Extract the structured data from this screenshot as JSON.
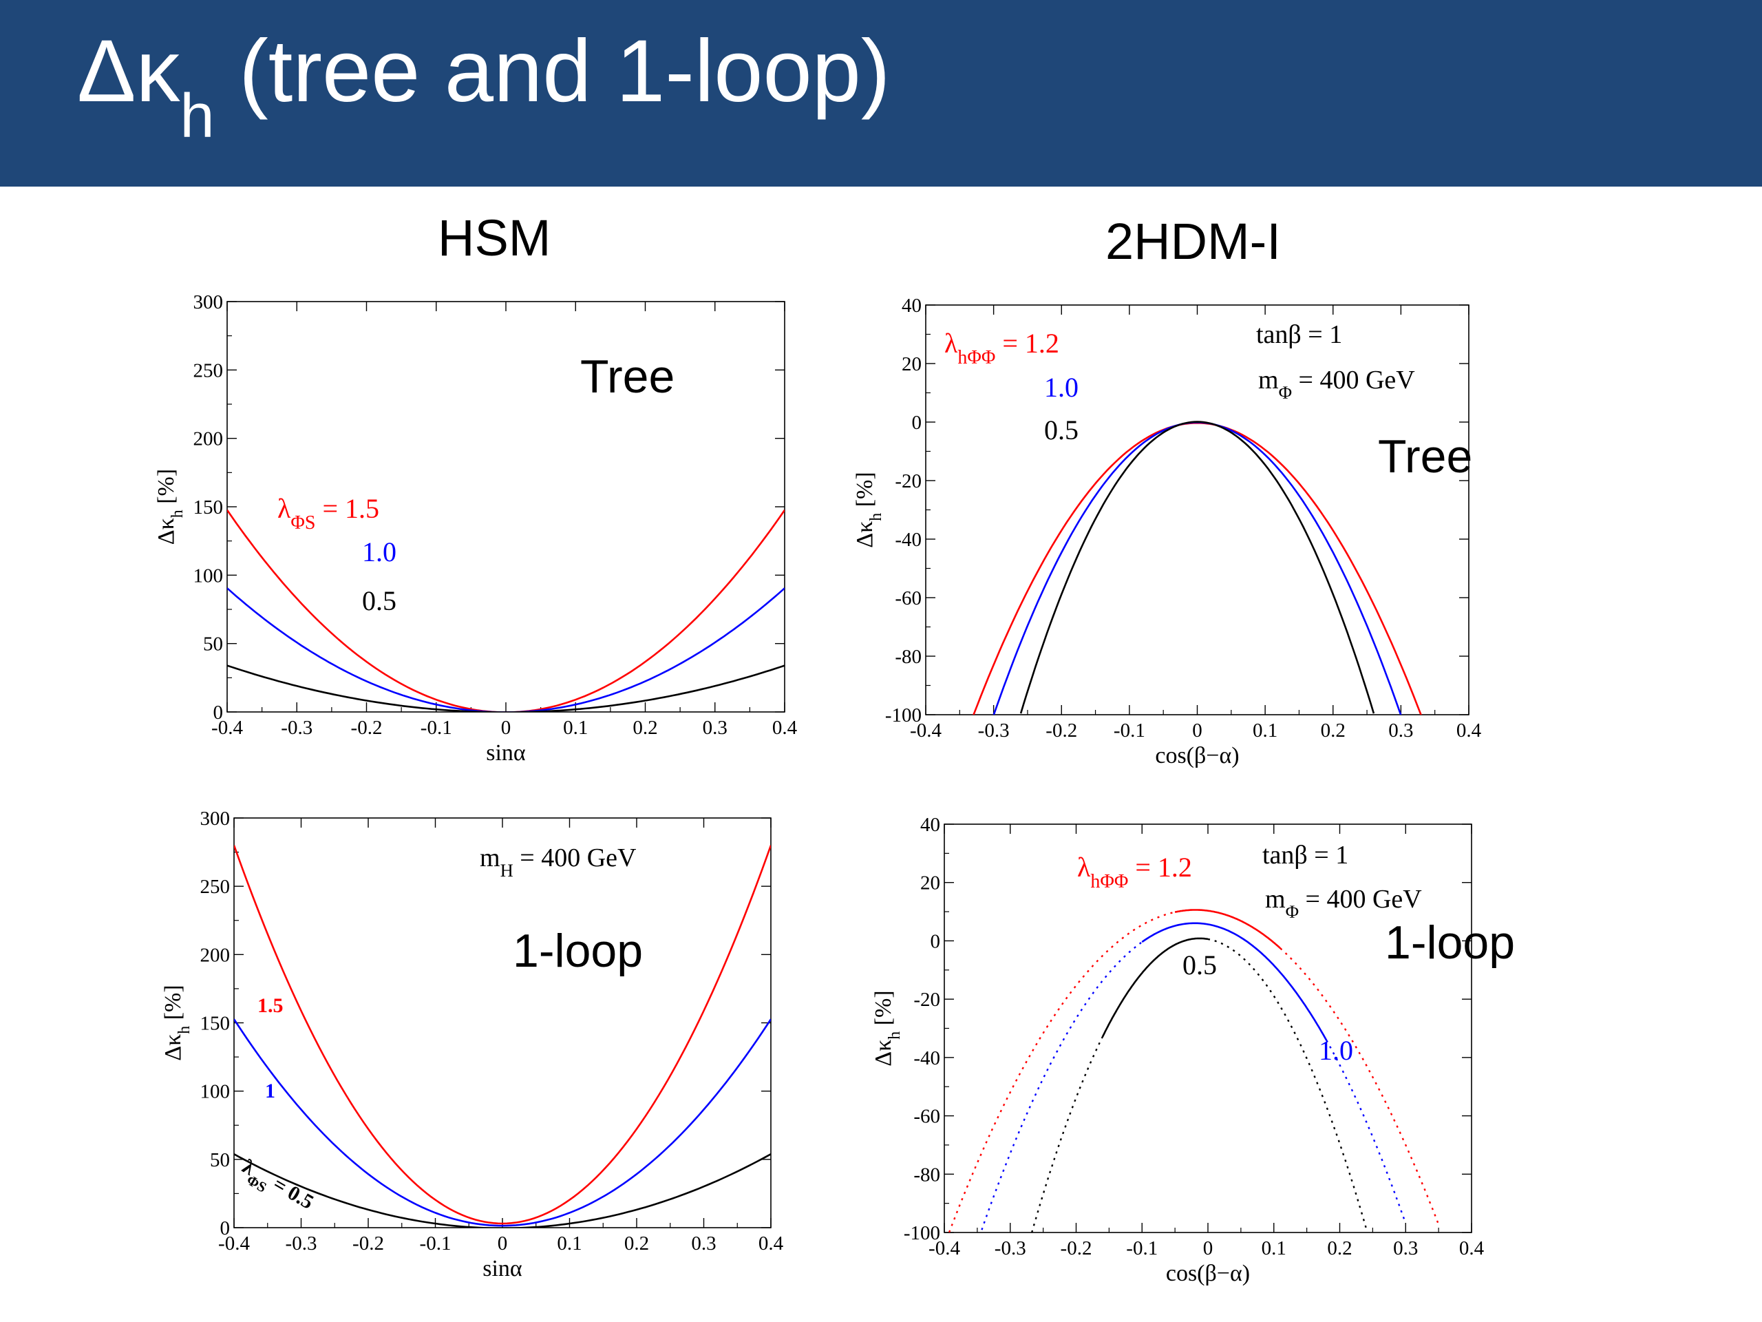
{
  "slide": {
    "title_main": "Δκ",
    "title_sub": "h",
    "title_rest": " (tree and 1-loop)",
    "background_color": "#1f4778"
  },
  "columns": {
    "left": "HSM",
    "right": "2HDM-I"
  },
  "colors": {
    "red": "#ff0000",
    "blue": "#0000ff",
    "black": "#000000"
  },
  "chart_data": [
    {
      "id": "hsm-tree",
      "type": "line",
      "xlim": [
        -0.4,
        0.4
      ],
      "ylim": [
        0,
        300
      ],
      "xticks": [
        "-0.4",
        "-0.3",
        "-0.2",
        "-0.1",
        "0",
        "0.1",
        "0.2",
        "0.3",
        "0.4"
      ],
      "yticks": [
        "0",
        "50",
        "100",
        "150",
        "200",
        "250",
        "300"
      ],
      "xlabel": "sinα",
      "ylabel": "Δκ",
      "ylabel_sub": "h",
      "ylabel_unit": " [%]",
      "tag": "Tree",
      "annotations": [],
      "series": [
        {
          "label_prefix": "λ",
          "label_sub": "ΦS",
          "label": " = 1.5",
          "color": "#ff0000",
          "style": "solid",
          "x": [
            -0.4,
            -0.3,
            -0.2,
            -0.1,
            0,
            0.1,
            0.2,
            0.3,
            0.4
          ],
          "y": [
            148,
            82,
            37,
            9,
            0,
            9,
            37,
            82,
            148
          ]
        },
        {
          "label": "1.0",
          "color": "#0000ff",
          "style": "solid",
          "x": [
            -0.4,
            -0.3,
            -0.2,
            -0.1,
            0,
            0.1,
            0.2,
            0.3,
            0.4
          ],
          "y": [
            91,
            50,
            22,
            6,
            0,
            6,
            22,
            50,
            91
          ]
        },
        {
          "label": "0.5",
          "color": "#000000",
          "style": "solid",
          "x": [
            -0.4,
            -0.3,
            -0.2,
            -0.1,
            0,
            0.1,
            0.2,
            0.3,
            0.4
          ],
          "y": [
            34,
            19,
            8,
            2,
            0,
            2,
            8,
            19,
            34
          ]
        }
      ]
    },
    {
      "id": "thdm-tree",
      "type": "line",
      "xlim": [
        -0.4,
        0.4
      ],
      "ylim": [
        -100,
        40
      ],
      "xticks": [
        "-0.4",
        "-0.3",
        "-0.2",
        "-0.1",
        "0",
        "0.1",
        "0.2",
        "0.3",
        "0.4"
      ],
      "yticks": [
        "-100",
        "-80",
        "-60",
        "-40",
        "-20",
        "0",
        "20",
        "40"
      ],
      "xlabel": "cos(β−α)",
      "ylabel": "Δκ",
      "ylabel_sub": "h",
      "ylabel_unit": " [%]",
      "tag": "Tree",
      "annotations": [
        {
          "text": "tanβ = 1"
        },
        {
          "text": "m",
          "sub": "Φ",
          "rest": " = 400 GeV"
        }
      ],
      "series": [
        {
          "label_prefix": "λ",
          "label_sub": "hΦΦ",
          "label": " = 1.2",
          "color": "#ff0000",
          "style": "solid",
          "x": [
            -0.33,
            -0.2,
            -0.1,
            0,
            0.1,
            0.2,
            0.33
          ],
          "y": [
            -100,
            -38,
            -9,
            0,
            -9,
            -38,
            -100
          ]
        },
        {
          "label": "1.0",
          "color": "#0000ff",
          "style": "solid",
          "x": [
            -0.3,
            -0.2,
            -0.1,
            0,
            0.1,
            0.2,
            0.3
          ],
          "y": [
            -100,
            -45,
            -11,
            0,
            -11,
            -45,
            -100
          ]
        },
        {
          "label": "0.5",
          "color": "#000000",
          "style": "solid",
          "x": [
            -0.26,
            -0.2,
            -0.1,
            0,
            0.1,
            0.2,
            0.26
          ],
          "y": [
            -100,
            -58,
            -15,
            0,
            -15,
            -58,
            -100
          ]
        }
      ]
    },
    {
      "id": "hsm-loop",
      "type": "line",
      "xlim": [
        -0.4,
        0.4
      ],
      "ylim": [
        0,
        300
      ],
      "xticks": [
        "-0.4",
        "-0.3",
        "-0.2",
        "-0.1",
        "0",
        "0.1",
        "0.2",
        "0.3",
        "0.4"
      ],
      "yticks": [
        "0",
        "50",
        "100",
        "150",
        "200",
        "250",
        "300"
      ],
      "xlabel": "sinα",
      "ylabel": "Δκ",
      "ylabel_sub": "h",
      "ylabel_unit": " [%]",
      "tag": "1-loop",
      "annotations": [
        {
          "text": "m",
          "sub": "H",
          "rest": " = 400 GeV"
        }
      ],
      "series": [
        {
          "label": "1.5",
          "color": "#ff0000",
          "style": "solid",
          "x": [
            -0.4,
            -0.3,
            -0.2,
            -0.1,
            0,
            0.1,
            0.2,
            0.3,
            0.4
          ],
          "y": [
            280,
            159,
            72,
            20,
            4,
            20,
            72,
            159,
            280
          ]
        },
        {
          "label": "1",
          "color": "#0000ff",
          "style": "solid",
          "x": [
            -0.4,
            -0.3,
            -0.2,
            -0.1,
            0,
            0.1,
            0.2,
            0.3,
            0.4
          ],
          "y": [
            153,
            86,
            39,
            11,
            2,
            11,
            39,
            86,
            153
          ]
        },
        {
          "label_prefix": "λ",
          "label_sub": "ΦS",
          "label": " = 0.5",
          "color": "#000000",
          "style": "solid",
          "x": [
            -0.4,
            -0.3,
            -0.2,
            -0.1,
            0,
            0.1,
            0.2,
            0.3,
            0.4
          ],
          "y": [
            54,
            30,
            13,
            3,
            0,
            3,
            13,
            30,
            54
          ]
        }
      ]
    },
    {
      "id": "thdm-loop",
      "type": "line",
      "xlim": [
        -0.4,
        0.4
      ],
      "ylim": [
        -100,
        40
      ],
      "xticks": [
        "-0.4",
        "-0.3",
        "-0.2",
        "-0.1",
        "0",
        "0.1",
        "0.2",
        "0.3",
        "0.4"
      ],
      "yticks": [
        "-100",
        "-80",
        "-60",
        "-40",
        "-20",
        "0",
        "20",
        "40"
      ],
      "xlabel": "cos(β−α)",
      "ylabel": "Δκ",
      "ylabel_sub": "h",
      "ylabel_unit": " [%]",
      "tag": "1-loop",
      "annotations": [
        {
          "text": "tanβ = 1"
        },
        {
          "text": "m",
          "sub": "Φ",
          "rest": " = 400 GeV"
        }
      ],
      "series": [
        {
          "label_prefix": "λ",
          "label_sub": "hΦΦ",
          "label": " = 1.2",
          "color": "#ff0000",
          "x": [
            -0.4,
            -0.3,
            -0.2,
            -0.1,
            0,
            0.11,
            0.2,
            0.3,
            0.35
          ],
          "y": [
            -100,
            -53,
            -22,
            3,
            11,
            4,
            -24,
            -72,
            -100
          ],
          "solid_range": [
            -0.05,
            0.11
          ]
        },
        {
          "label": "1.0",
          "color": "#0000ff",
          "x": [
            -0.35,
            -0.3,
            -0.2,
            -0.1,
            -0.02,
            0.1,
            0.18,
            0.25,
            0.3
          ],
          "y": [
            -100,
            -73,
            -32,
            -3,
            7,
            -4,
            -31,
            -68,
            -100
          ],
          "solid_range": [
            -0.1,
            0.18
          ]
        },
        {
          "label": "0.5",
          "color": "#000000",
          "x": [
            -0.27,
            -0.2,
            -0.15,
            -0.1,
            -0.02,
            0.05,
            0.1,
            0.2,
            0.24
          ],
          "y": [
            -100,
            -54,
            -32,
            -12,
            1,
            -5,
            -15,
            -70,
            -100
          ],
          "solid_range": [
            -0.16,
            0.0
          ]
        }
      ]
    }
  ]
}
